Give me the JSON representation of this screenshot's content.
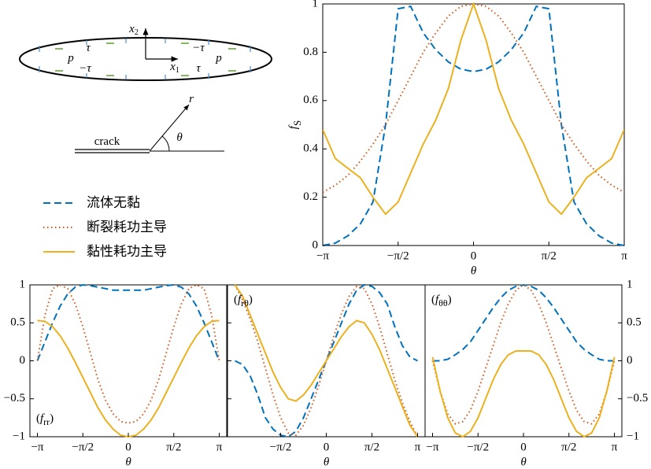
{
  "diagram": {
    "labels": [
      {
        "parts": [
          "x",
          "2"
        ]
      },
      {
        "parts": [
          "x",
          "1"
        ]
      },
      {
        "parts": [
          "p"
        ]
      },
      {
        "parts": [
          "p"
        ]
      },
      {
        "parts": [
          "τ"
        ]
      },
      {
        "parts": [
          "τ"
        ]
      },
      {
        "parts": [
          "−τ"
        ]
      },
      {
        "parts": [
          "−τ"
        ]
      },
      {
        "parts": [
          "crack"
        ]
      },
      {
        "parts": [
          "r"
        ]
      },
      {
        "parts": [
          "θ"
        ]
      }
    ]
  },
  "chart_data": [
    {
      "type": "line",
      "xlabel": "θ",
      "ylabel_symbol": "f",
      "ylabel_subscript": "S",
      "x": [
        -3.1416,
        -2.8798,
        -2.618,
        -2.3562,
        -2.0944,
        -1.8326,
        -1.5708,
        -1.309,
        -1.0472,
        -0.7854,
        -0.5236,
        -0.2618,
        0,
        0.2618,
        0.5236,
        0.7854,
        1.0472,
        1.309,
        1.5708,
        1.8326,
        2.0944,
        2.3562,
        2.618,
        2.8798,
        3.1416
      ],
      "xlim": [
        -3.1416,
        3.1416
      ],
      "ylim": [
        0,
        1
      ],
      "xticks": [
        {
          "value": -3.1416,
          "label": "−π"
        },
        {
          "value": -1.5708,
          "label": "−π/2"
        },
        0,
        {
          "value": 1.5708,
          "label": "π/2"
        },
        {
          "value": 3.1416,
          "label": "π"
        }
      ],
      "yticks": [
        0,
        0.2,
        0.4,
        0.6,
        0.8,
        1
      ],
      "ytick_side": "left",
      "series": [
        {
          "name": "流体无黏",
          "color": "#0072bd",
          "style": "dashed",
          "values": [
            0,
            0.01,
            0.04,
            0.09,
            0.18,
            0.5,
            0.98,
            0.99,
            0.88,
            0.81,
            0.76,
            0.73,
            0.72,
            0.73,
            0.76,
            0.81,
            0.88,
            0.99,
            0.98,
            0.5,
            0.18,
            0.09,
            0.04,
            0.01,
            0
          ]
        },
        {
          "name": "断裂耗功主导",
          "color": "#d95319",
          "style": "dotted",
          "values": [
            0.22,
            0.25,
            0.29,
            0.35,
            0.42,
            0.5,
            0.6,
            0.7,
            0.8,
            0.88,
            0.95,
            0.99,
            1,
            0.99,
            0.95,
            0.88,
            0.8,
            0.7,
            0.6,
            0.5,
            0.42,
            0.35,
            0.29,
            0.25,
            0.22
          ]
        },
        {
          "name": "黏性耗功主导",
          "color": "#edb120",
          "style": "solid",
          "values": [
            0.48,
            0.36,
            0.32,
            0.28,
            0.2,
            0.13,
            0.18,
            0.3,
            0.42,
            0.52,
            0.65,
            0.85,
            1,
            0.85,
            0.65,
            0.52,
            0.42,
            0.3,
            0.18,
            0.13,
            0.2,
            0.28,
            0.32,
            0.36,
            0.48
          ]
        }
      ]
    },
    {
      "type": "line",
      "xlabel": "θ",
      "panel_label": [
        "(",
        "f",
        "rr",
        ")"
      ],
      "x": [
        -3.1416,
        -2.8798,
        -2.618,
        -2.3562,
        -2.0944,
        -1.8326,
        -1.5708,
        -1.309,
        -1.0472,
        -0.7854,
        -0.5236,
        -0.2618,
        0,
        0.2618,
        0.5236,
        0.7854,
        1.0472,
        1.309,
        1.5708,
        1.8326,
        2.0944,
        2.3562,
        2.618,
        2.8798,
        3.1416
      ],
      "xlim": [
        -3.4,
        3.4
      ],
      "ylim": [
        -1,
        1
      ],
      "xticks": [
        {
          "value": -3.1416,
          "label": "−π"
        },
        {
          "value": -1.5708,
          "label": "−π/2"
        },
        0,
        {
          "value": 1.5708,
          "label": "π/2"
        },
        {
          "value": 3.1416,
          "label": "π"
        }
      ],
      "yticks": [
        {
          "value": -1,
          "label": "−1"
        },
        {
          "value": -0.5,
          "label": "−0.5"
        },
        0,
        0.5,
        1
      ],
      "ytick_side": "left",
      "series": [
        {
          "color": "#0072bd",
          "style": "dashed",
          "values": [
            0,
            0.25,
            0.5,
            0.72,
            0.88,
            0.97,
            1,
            0.99,
            0.97,
            0.95,
            0.93,
            0.93,
            0.93,
            0.93,
            0.93,
            0.95,
            0.97,
            0.99,
            1,
            0.97,
            0.88,
            0.72,
            0.5,
            0.25,
            0
          ]
        },
        {
          "color": "#d95319",
          "style": "dotted",
          "values": [
            0,
            0.6,
            0.95,
            1,
            0.95,
            0.75,
            0.45,
            0.1,
            -0.25,
            -0.52,
            -0.7,
            -0.8,
            -0.82,
            -0.8,
            -0.7,
            -0.52,
            -0.25,
            0.1,
            0.45,
            0.75,
            0.95,
            1,
            0.95,
            0.6,
            0
          ]
        },
        {
          "color": "#edb120",
          "style": "solid",
          "values": [
            0.53,
            0.52,
            0.45,
            0.33,
            0.17,
            -0.02,
            -0.22,
            -0.42,
            -0.62,
            -0.78,
            -0.9,
            -0.98,
            -1,
            -0.98,
            -0.9,
            -0.78,
            -0.62,
            -0.42,
            -0.22,
            -0.02,
            0.17,
            0.33,
            0.45,
            0.52,
            0.53
          ]
        }
      ]
    },
    {
      "type": "line",
      "xlabel": "θ",
      "panel_label": [
        "(",
        "f",
        "rθ",
        ")"
      ],
      "x": [
        -3.1416,
        -2.8798,
        -2.618,
        -2.3562,
        -2.0944,
        -1.8326,
        -1.5708,
        -1.309,
        -1.0472,
        -0.7854,
        -0.5236,
        -0.2618,
        0,
        0.2618,
        0.5236,
        0.7854,
        1.0472,
        1.309,
        1.5708,
        1.8326,
        2.0944,
        2.3562,
        2.618,
        2.8798,
        3.1416
      ],
      "xlim": [
        -3.4,
        3.4
      ],
      "ylim": [
        -1,
        1
      ],
      "xticks": [
        {
          "value": -1.5708,
          "label": "−π/2"
        },
        0,
        {
          "value": 1.5708,
          "label": "π/2"
        },
        {
          "value": 3.1416,
          "label": "π"
        }
      ],
      "yticks": [
        -1,
        -0.5,
        0,
        0.5,
        1
      ],
      "ytick_side": "none",
      "series": [
        {
          "color": "#0072bd",
          "style": "dashed",
          "values": [
            0,
            -0.05,
            -0.2,
            -0.45,
            -0.75,
            -0.9,
            -0.98,
            -1,
            -0.93,
            -0.75,
            -0.5,
            -0.25,
            0,
            0.25,
            0.5,
            0.75,
            0.93,
            1,
            0.98,
            0.9,
            0.75,
            0.45,
            0.2,
            0.05,
            0
          ]
        },
        {
          "color": "#d95319",
          "style": "dotted",
          "values": [
            1,
            0.8,
            0.55,
            0.25,
            -0.1,
            -0.45,
            -0.75,
            -0.95,
            -0.98,
            -0.85,
            -0.62,
            -0.33,
            0,
            0.33,
            0.62,
            0.85,
            0.98,
            0.95,
            0.75,
            0.45,
            0.1,
            -0.25,
            -0.55,
            -0.8,
            -1
          ]
        },
        {
          "color": "#edb120",
          "style": "solid",
          "values": [
            1,
            0.85,
            0.6,
            0.35,
            0.1,
            -0.15,
            -0.35,
            -0.5,
            -0.53,
            -0.45,
            -0.32,
            -0.16,
            0,
            0.16,
            0.32,
            0.45,
            0.53,
            0.5,
            0.35,
            0.15,
            -0.1,
            -0.35,
            -0.6,
            -0.85,
            -1
          ]
        }
      ]
    },
    {
      "type": "line",
      "xlabel": "θ",
      "panel_label": [
        "(",
        "f",
        "θθ",
        ")"
      ],
      "x": [
        -3.1416,
        -2.8798,
        -2.618,
        -2.3562,
        -2.0944,
        -1.8326,
        -1.5708,
        -1.309,
        -1.0472,
        -0.7854,
        -0.5236,
        -0.2618,
        0,
        0.2618,
        0.5236,
        0.7854,
        1.0472,
        1.309,
        1.5708,
        1.8326,
        2.0944,
        2.3562,
        2.618,
        2.8798,
        3.1416
      ],
      "xlim": [
        -3.4,
        3.4
      ],
      "ylim": [
        -1,
        1
      ],
      "xticks": [
        {
          "value": -3.1416,
          "label": "−π"
        },
        {
          "value": -1.5708,
          "label": "−π/2"
        },
        0,
        {
          "value": 1.5708,
          "label": "π/2"
        },
        {
          "value": 3.1416,
          "label": "π"
        }
      ],
      "yticks": [
        {
          "value": -1,
          "label": "−1"
        },
        {
          "value": -0.5,
          "label": "−0.5"
        },
        0,
        0.5,
        1
      ],
      "ytick_side": "right",
      "series": [
        {
          "color": "#0072bd",
          "style": "dashed",
          "values": [
            0,
            0,
            0.02,
            0.08,
            0.15,
            0.25,
            0.4,
            0.55,
            0.7,
            0.83,
            0.93,
            0.98,
            1,
            0.98,
            0.93,
            0.83,
            0.7,
            0.55,
            0.4,
            0.25,
            0.15,
            0.08,
            0.02,
            0,
            0
          ]
        },
        {
          "color": "#d95319",
          "style": "dotted",
          "values": [
            0,
            -0.4,
            -0.7,
            -0.83,
            -0.8,
            -0.65,
            -0.4,
            -0.1,
            0.2,
            0.5,
            0.75,
            0.93,
            1,
            0.93,
            0.75,
            0.5,
            0.2,
            -0.1,
            -0.4,
            -0.65,
            -0.8,
            -0.83,
            -0.7,
            -0.4,
            0
          ]
        },
        {
          "color": "#edb120",
          "style": "solid",
          "values": [
            0.05,
            -0.4,
            -0.75,
            -0.95,
            -1,
            -0.93,
            -0.75,
            -0.5,
            -0.25,
            -0.05,
            0.08,
            0.13,
            0.13,
            0.13,
            0.08,
            -0.05,
            -0.25,
            -0.5,
            -0.75,
            -0.93,
            -1,
            -0.95,
            -0.75,
            -0.4,
            0.05
          ]
        }
      ]
    }
  ]
}
